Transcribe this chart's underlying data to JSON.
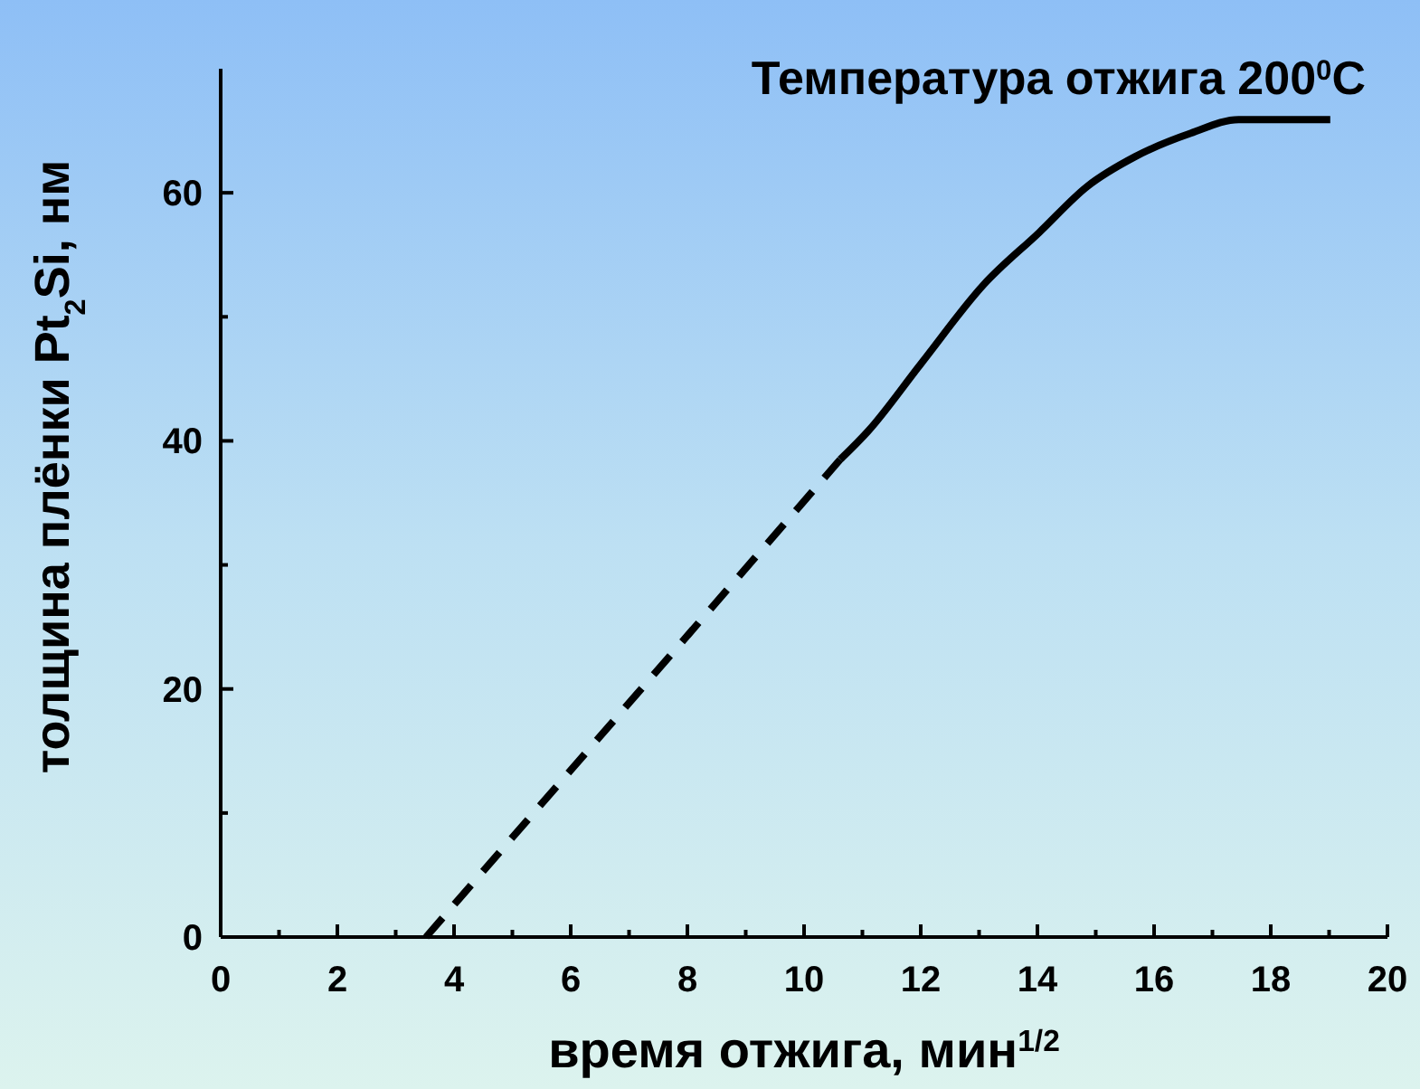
{
  "chart_data": {
    "type": "line",
    "title": "Температура отжига 200$^{0}$C",
    "xlabel": "время отжига, мин$^{1/2}$",
    "ylabel": "толщина плёнки Pt$_{2}$Si, нм",
    "series": [
      {
        "color": "#000000",
        "line_style": "dashed",
        "x": [
          3.52,
          10.62
        ],
        "values": [
          0,
          38.5
        ]
      },
      {
        "color": "#000000",
        "line_style": "solid",
        "x": [
          10.62,
          11.1,
          12.0,
          13.08,
          14.03,
          14.85,
          15.67,
          16.63,
          17.45,
          19.02
        ],
        "values": [
          38.5,
          40.8,
          46.2,
          52.6,
          56.8,
          60.5,
          62.9,
          64.8,
          65.9,
          65.9
        ]
      }
    ],
    "xlim": [
      0,
      20
    ],
    "xticks": [
      0,
      {
        "value": 1,
        "label": null
      },
      2,
      {
        "value": 3,
        "label": null
      },
      4,
      {
        "value": 5,
        "label": null
      },
      6,
      {
        "value": 7,
        "label": null
      },
      8,
      {
        "value": 9,
        "label": null
      },
      10,
      {
        "value": 11,
        "label": null
      },
      12,
      {
        "value": 13,
        "label": null
      },
      14,
      {
        "value": 15,
        "label": null
      },
      16,
      {
        "value": 17,
        "label": null
      },
      18,
      {
        "value": 19,
        "label": null
      },
      20
    ],
    "ylim": [
      0,
      70
    ],
    "yticks": [
      0,
      {
        "value": 10,
        "label": null
      },
      20,
      {
        "value": 30,
        "label": null
      },
      40,
      {
        "value": 50,
        "label": null
      },
      60
    ],
    "grid": false
  }
}
